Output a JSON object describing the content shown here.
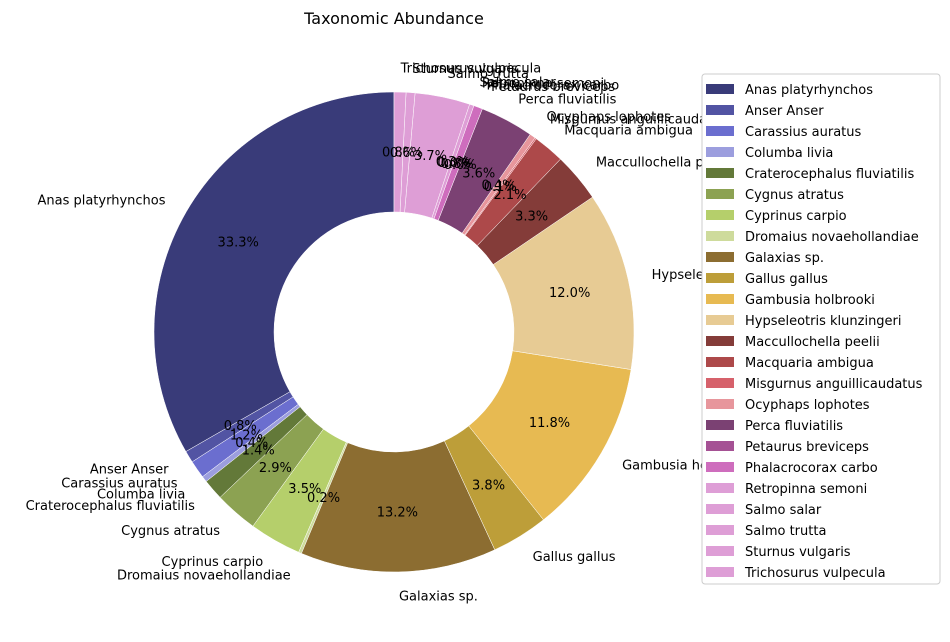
{
  "chart_data": {
    "type": "pie",
    "donut": true,
    "title": "Taxonomic Abundance",
    "legend_position": "right",
    "start_angle": "top",
    "direction": "counterclockwise",
    "slices": [
      {
        "label": "Anas platyrhynchos",
        "value": 33.3,
        "pct_label": "33.3%",
        "color": "#393b79"
      },
      {
        "label": "Anser Anser",
        "value": 0.8,
        "pct_label": "0.8%",
        "color": "#5254a3"
      },
      {
        "label": "Carassius auratus",
        "value": 1.2,
        "pct_label": "1.2%",
        "color": "#6b6ecf"
      },
      {
        "label": "Columba livia",
        "value": 0.4,
        "pct_label": "0.4%",
        "color": "#9c9ede"
      },
      {
        "label": "Craterocephalus fluviatilis",
        "value": 1.4,
        "pct_label": "1.4%",
        "color": "#637939"
      },
      {
        "label": "Cygnus atratus",
        "value": 2.9,
        "pct_label": "2.9%",
        "color": "#8ca252"
      },
      {
        "label": "Cyprinus carpio",
        "value": 3.5,
        "pct_label": "3.5%",
        "color": "#b5cf6b"
      },
      {
        "label": "Dromaius novaehollandiae",
        "value": 0.2,
        "pct_label": "0.2%",
        "color": "#cedb9c"
      },
      {
        "label": "Galaxias sp.",
        "value": 13.2,
        "pct_label": "13.2%",
        "color": "#8c6d31"
      },
      {
        "label": "Gallus gallus",
        "value": 3.8,
        "pct_label": "3.8%",
        "color": "#bd9e39"
      },
      {
        "label": "Gambusia holbrooki",
        "value": 11.8,
        "pct_label": "11.8%",
        "color": "#e7ba52"
      },
      {
        "label": "Hypseleotris klunzingeri",
        "value": 12.0,
        "pct_label": "12.0%",
        "color": "#e7cb94"
      },
      {
        "label": "Maccullochella peelii",
        "value": 3.3,
        "pct_label": "3.3%",
        "color": "#843c39"
      },
      {
        "label": "Macquaria ambigua",
        "value": 2.1,
        "pct_label": "2.1%",
        "color": "#ad494a"
      },
      {
        "label": "Misgurnus anguillicaudatus",
        "value": 0.1,
        "pct_label": "0.1%",
        "color": "#d6616b"
      },
      {
        "label": "Ocyphaps lophotes",
        "value": 0.4,
        "pct_label": "0.4%",
        "color": "#e7969c"
      },
      {
        "label": "Perca fluviatilis",
        "value": 3.6,
        "pct_label": "3.6%",
        "color": "#7b4173"
      },
      {
        "label": "Petaurus breviceps",
        "value": 0.0,
        "pct_label": "0.0%",
        "color": "#a55194"
      },
      {
        "label": "Phalacrocorax carbo",
        "value": 0.6,
        "pct_label": "0.6%",
        "color": "#ce6dbd"
      },
      {
        "label": "Retropinna semoni",
        "value": 0.0,
        "pct_label": "0.0%",
        "color": "#de9ed6"
      },
      {
        "label": "Salmo salar",
        "value": 0.3,
        "pct_label": "0.3%",
        "color": "#de9ed6"
      },
      {
        "label": "Salmo trutta",
        "value": 3.7,
        "pct_label": "3.7%",
        "color": "#de9ed6"
      },
      {
        "label": "Sturnus vulgaris",
        "value": 0.6,
        "pct_label": "0.6%",
        "color": "#de9ed6"
      },
      {
        "label": "Trichosurus vulpecula",
        "value": 0.8,
        "pct_label": "0.8%",
        "color": "#de9ed6"
      }
    ]
  }
}
